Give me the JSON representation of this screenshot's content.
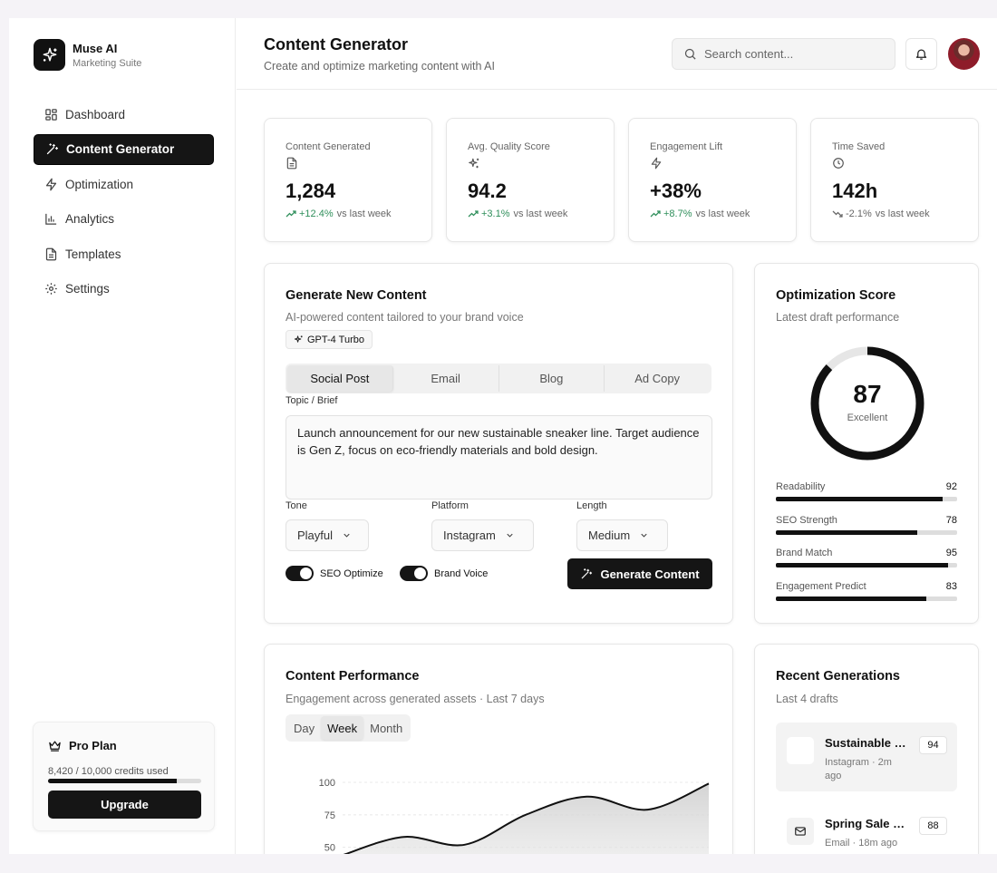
{
  "brand": {
    "name": "Muse AI",
    "subtitle": "Marketing Suite"
  },
  "sidebar": {
    "items": [
      {
        "label": "Dashboard",
        "icon": "grid-icon"
      },
      {
        "label": "Content Generator",
        "icon": "wand-icon",
        "active": true
      },
      {
        "label": "Optimization",
        "icon": "bolt-icon"
      },
      {
        "label": "Analytics",
        "icon": "bar-chart-icon"
      },
      {
        "label": "Templates",
        "icon": "file-icon"
      },
      {
        "label": "Settings",
        "icon": "gear-icon"
      }
    ]
  },
  "plan": {
    "title": "Pro Plan",
    "credits": "8,420 / 10,000 credits used",
    "credits_fraction": 0.842,
    "upgrade_label": "Upgrade"
  },
  "header": {
    "title": "Content Generator",
    "subtitle": "Create and optimize marketing content with AI",
    "search_placeholder": "Search content..."
  },
  "stats": [
    {
      "label": "Content Generated",
      "icon": "file-icon",
      "value": "1,284",
      "delta": "+12.4%",
      "trend": "up",
      "suffix": "vs last week"
    },
    {
      "label": "Avg. Quality Score",
      "icon": "sparkle-icon",
      "value": "94.2",
      "delta": "+3.1%",
      "trend": "up",
      "suffix": "vs last week"
    },
    {
      "label": "Engagement Lift",
      "icon": "bolt-icon",
      "value": "+38%",
      "delta": "+8.7%",
      "trend": "up",
      "suffix": "vs last week"
    },
    {
      "label": "Time Saved",
      "icon": "clock-icon",
      "value": "142h",
      "delta": "-2.1%",
      "trend": "down",
      "suffix": "vs last week"
    }
  ],
  "generate": {
    "title": "Generate New Content",
    "subtitle": "AI-powered content tailored to your brand voice",
    "model": "GPT-4 Turbo",
    "tabs": [
      "Social Post",
      "Email",
      "Blog",
      "Ad Copy"
    ],
    "active_tab": 0,
    "brief_label": "Topic / Brief",
    "brief_value": "Launch announcement for our new sustainable sneaker line. Target audience is Gen Z, focus on eco-friendly materials and bold design.",
    "tone_label": "Tone",
    "tone_value": "Playful",
    "platform_label": "Platform",
    "platform_value": "Instagram",
    "length_label": "Length",
    "length_value": "Medium",
    "toggle_seo": "SEO Optimize",
    "toggle_brand": "Brand Voice",
    "button": "Generate Content"
  },
  "optimization": {
    "title": "Optimization Score",
    "subtitle": "Latest draft performance",
    "score": "87",
    "score_value": 87,
    "score_label": "Excellent",
    "metrics": [
      {
        "label": "Readability",
        "value": "92",
        "fraction": 0.92
      },
      {
        "label": "SEO Strength",
        "value": "78",
        "fraction": 0.78
      },
      {
        "label": "Brand Match",
        "value": "95",
        "fraction": 0.95
      },
      {
        "label": "Engagement Predict",
        "value": "83",
        "fraction": 0.83
      }
    ]
  },
  "performance": {
    "title": "Content Performance",
    "subtitle": "Engagement across generated assets · Last 7 days",
    "ranges": [
      "Day",
      "Week",
      "Month"
    ],
    "active_range": 1
  },
  "chart_data": {
    "type": "area",
    "title": "",
    "xlabel": "",
    "ylabel": "",
    "y_ticks": [
      "100",
      "75",
      "50"
    ],
    "ylim": [
      40,
      100
    ],
    "x": [
      0,
      1,
      2,
      3,
      4,
      5,
      6
    ],
    "series": [
      {
        "values": [
          44,
          58,
          52,
          75,
          89,
          79,
          99
        ]
      }
    ]
  },
  "recent": {
    "title": "Recent Generations",
    "subtitle": "Last 4 drafts",
    "items": [
      {
        "title": "Sustainable Sneaker Launch",
        "meta": "Instagram · 2m ago",
        "score": "94",
        "icon": "image-icon"
      },
      {
        "title": "Spring Sale Email",
        "meta": "Email · 18m ago",
        "score": "88",
        "icon": "mail-icon"
      }
    ]
  },
  "colors": {
    "accent": "#151515",
    "positive": "#2f8f5b",
    "background": "#f5f3f7"
  }
}
